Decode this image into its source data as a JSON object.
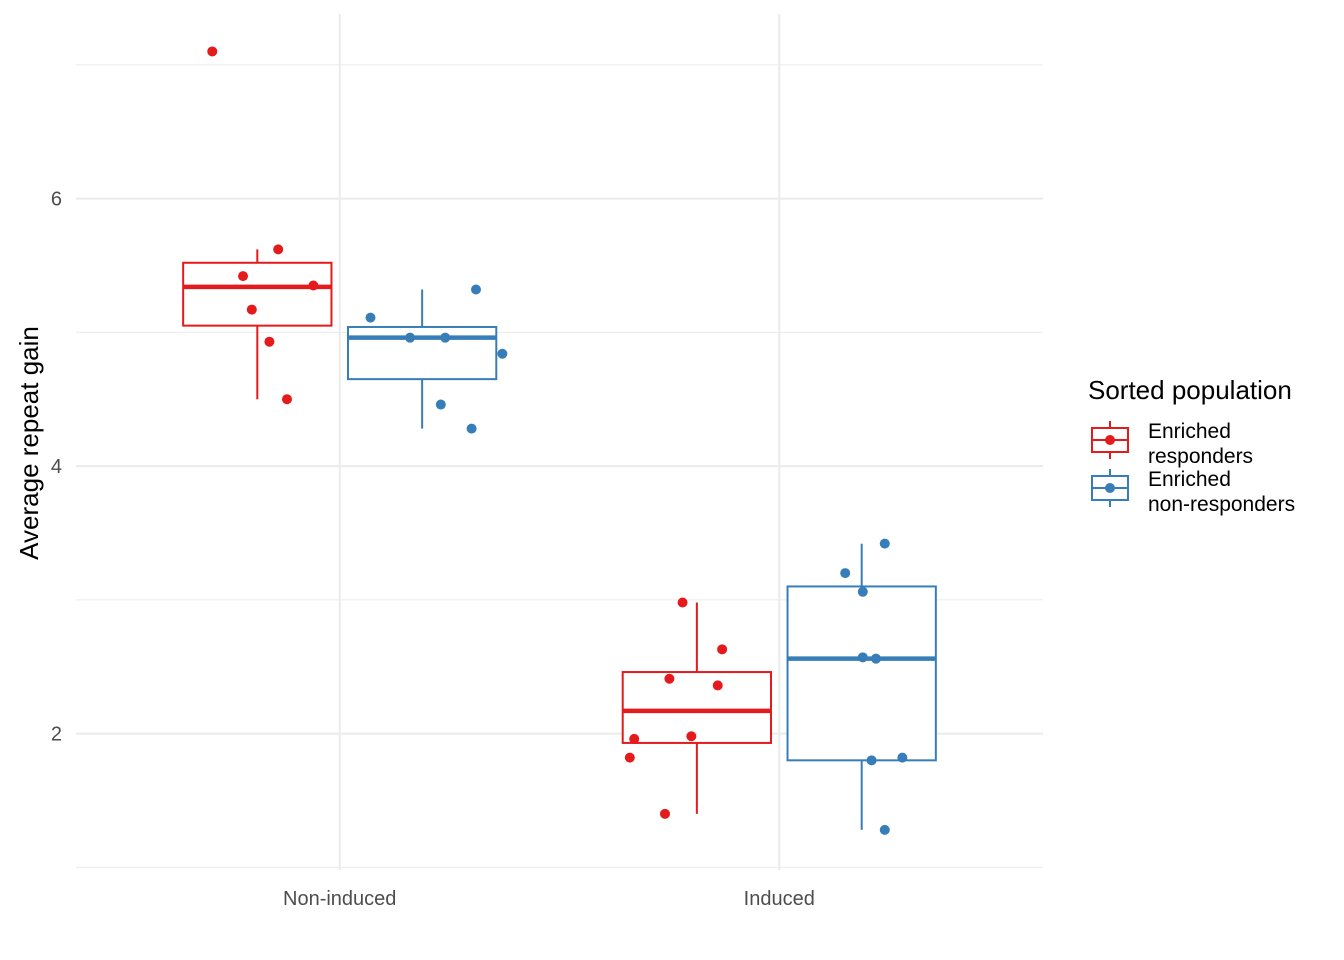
{
  "chart_data": {
    "type": "box",
    "xlabel": "",
    "ylabel": "Average repeat gain",
    "categories": [
      "Non-induced",
      "Induced"
    ],
    "ylim": [
      0.98,
      7.38
    ],
    "yticks": [
      2,
      4,
      6
    ],
    "grid": true,
    "legend": {
      "title": "Sorted population",
      "placement": "right"
    },
    "series": [
      {
        "name": "Enriched responders",
        "label_lines": [
          "Enriched",
          "responders"
        ],
        "color": "#E41A1C",
        "boxes": [
          {
            "category": "Non-induced",
            "min": 4.5,
            "q1": 5.05,
            "median": 5.34,
            "q3": 5.52,
            "max": 5.62
          },
          {
            "category": "Induced",
            "min": 1.4,
            "q1": 1.93,
            "median": 2.17,
            "q3": 2.46,
            "max": 2.98
          }
        ],
        "points": [
          {
            "category": "Non-induced",
            "jitter": -0.29,
            "y": 7.1
          },
          {
            "category": "Non-induced",
            "jitter": -0.22,
            "y": 5.42
          },
          {
            "category": "Non-induced",
            "jitter": -0.14,
            "y": 5.62
          },
          {
            "category": "Non-induced",
            "jitter": -0.06,
            "y": 5.35
          },
          {
            "category": "Non-induced",
            "jitter": -0.2,
            "y": 5.17
          },
          {
            "category": "Non-induced",
            "jitter": -0.16,
            "y": 4.93
          },
          {
            "category": "Non-induced",
            "jitter": -0.12,
            "y": 4.5
          },
          {
            "category": "Induced",
            "jitter": -0.22,
            "y": 2.98
          },
          {
            "category": "Induced",
            "jitter": -0.13,
            "y": 2.63
          },
          {
            "category": "Induced",
            "jitter": -0.25,
            "y": 2.41
          },
          {
            "category": "Induced",
            "jitter": -0.14,
            "y": 2.36
          },
          {
            "category": "Induced",
            "jitter": -0.2,
            "y": 1.98
          },
          {
            "category": "Induced",
            "jitter": -0.33,
            "y": 1.96
          },
          {
            "category": "Induced",
            "jitter": -0.34,
            "y": 1.82
          },
          {
            "category": "Induced",
            "jitter": -0.26,
            "y": 1.4
          }
        ]
      },
      {
        "name": "Enriched non-responders",
        "label_lines": [
          "Enriched",
          "non-responders"
        ],
        "color": "#377EB8",
        "boxes": [
          {
            "category": "Non-induced",
            "min": 4.28,
            "q1": 4.65,
            "median": 4.96,
            "q3": 5.04,
            "max": 5.32
          },
          {
            "category": "Induced",
            "min": 1.28,
            "q1": 1.8,
            "median": 2.56,
            "q3": 3.1,
            "max": 3.42
          }
        ],
        "points": [
          {
            "category": "Non-induced",
            "jitter": 0.31,
            "y": 5.32
          },
          {
            "category": "Non-induced",
            "jitter": 0.07,
            "y": 5.11
          },
          {
            "category": "Non-induced",
            "jitter": 0.16,
            "y": 4.96
          },
          {
            "category": "Non-induced",
            "jitter": 0.24,
            "y": 4.96
          },
          {
            "category": "Non-induced",
            "jitter": 0.37,
            "y": 4.84
          },
          {
            "category": "Non-induced",
            "jitter": 0.23,
            "y": 4.46
          },
          {
            "category": "Non-induced",
            "jitter": 0.3,
            "y": 4.28
          },
          {
            "category": "Induced",
            "jitter": 0.24,
            "y": 3.42
          },
          {
            "category": "Induced",
            "jitter": 0.15,
            "y": 3.2
          },
          {
            "category": "Induced",
            "jitter": 0.19,
            "y": 3.06
          },
          {
            "category": "Induced",
            "jitter": 0.19,
            "y": 2.57
          },
          {
            "category": "Induced",
            "jitter": 0.22,
            "y": 2.56
          },
          {
            "category": "Induced",
            "jitter": 0.28,
            "y": 1.82
          },
          {
            "category": "Induced",
            "jitter": 0.21,
            "y": 1.8
          },
          {
            "category": "Induced",
            "jitter": 0.24,
            "y": 1.28
          }
        ]
      }
    ]
  }
}
